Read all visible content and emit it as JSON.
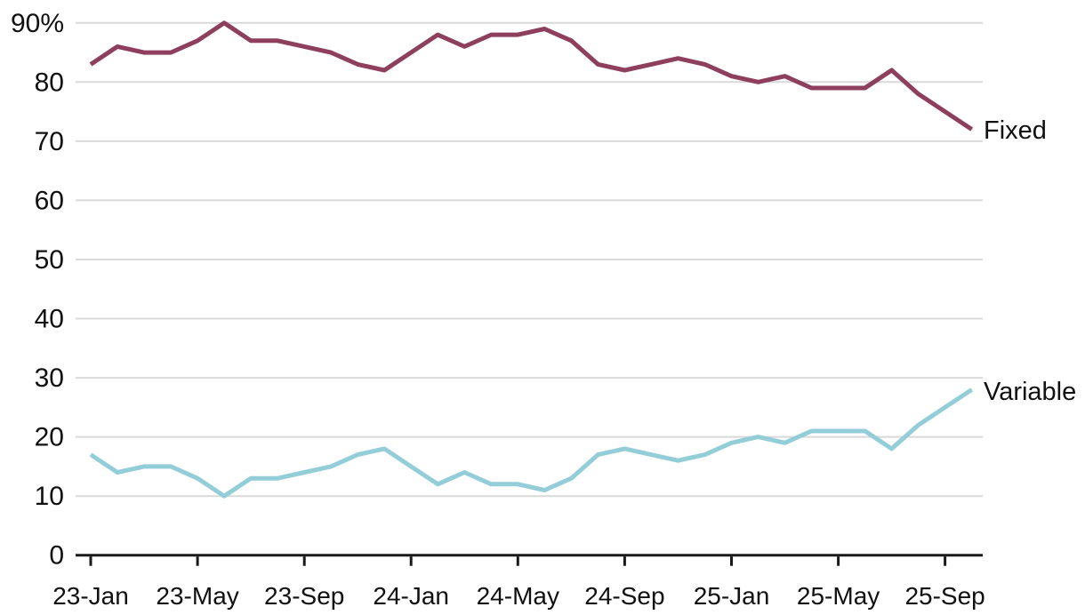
{
  "chart_data": {
    "type": "line",
    "unit": "%",
    "grid": "horizontal",
    "legend_position": "end-of-line-labels",
    "x": [
      "23-Jan",
      "23-Feb",
      "23-Mar",
      "23-Apr",
      "23-May",
      "23-Jun",
      "23-Jul",
      "23-Aug",
      "23-Sep",
      "23-Oct",
      "23-Nov",
      "23-Dec",
      "24-Jan",
      "24-Feb",
      "24-Mar",
      "24-Apr",
      "24-May",
      "24-Jun",
      "24-Jul",
      "24-Aug",
      "24-Sep",
      "24-Oct",
      "24-Nov",
      "24-Dec",
      "25-Jan",
      "25-Feb",
      "25-Mar",
      "25-Apr",
      "25-May",
      "25-Jun",
      "25-Jul",
      "25-Aug",
      "25-Sep",
      "25-Oct"
    ],
    "x_tick_labels": [
      "23-Jan",
      "23-May",
      "23-Sep",
      "24-Jan",
      "24-May",
      "24-Sep",
      "25-Jan",
      "25-May",
      "25-Sep"
    ],
    "x_tick_indices": [
      0,
      4,
      8,
      12,
      16,
      20,
      24,
      28,
      32
    ],
    "y_tick_values": [
      0,
      10,
      20,
      30,
      40,
      50,
      60,
      70,
      80,
      90
    ],
    "y_tick_labels": [
      "0",
      "10",
      "20",
      "30",
      "40",
      "50",
      "60",
      "70",
      "80",
      "90%"
    ],
    "ylim": [
      0,
      90
    ],
    "series": [
      {
        "name": "Fixed",
        "color": "#8d3f5d",
        "values": [
          83,
          86,
          85,
          85,
          87,
          90,
          87,
          87,
          86,
          85,
          83,
          82,
          85,
          88,
          86,
          88,
          88,
          89,
          87,
          83,
          82,
          83,
          84,
          83,
          81,
          80,
          81,
          79,
          79,
          79,
          82,
          78,
          75,
          72
        ]
      },
      {
        "name": "Variable",
        "color": "#93ced8",
        "values": [
          17,
          14,
          15,
          15,
          13,
          10,
          13,
          13,
          14,
          15,
          17,
          18,
          15,
          12,
          14,
          12,
          12,
          11,
          13,
          17,
          18,
          17,
          16,
          17,
          19,
          20,
          19,
          21,
          21,
          21,
          18,
          22,
          25,
          28
        ]
      }
    ],
    "colors": {
      "gridline": "#d9d9d9",
      "axis": "#1a1a1a",
      "text": "#111111",
      "background": "#ffffff"
    }
  }
}
